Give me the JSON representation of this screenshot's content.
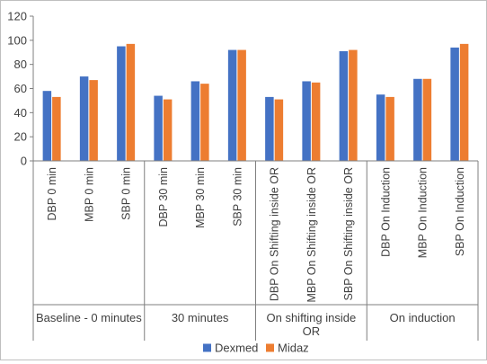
{
  "chart_data": {
    "type": "bar",
    "ylim": [
      0,
      120
    ],
    "yticks": [
      "0",
      "20",
      "40",
      "60",
      "80",
      "100",
      "120"
    ],
    "grid": false,
    "legend_position": "bottom",
    "categories": [
      "DBP 0 min",
      "MBP 0 min",
      "SBP 0 min",
      "DBP 30 min",
      "MBP 30 min",
      "SBP 30 min",
      "DBP On Shifting inside OR",
      "MBP On Shifting inside OR",
      "SBP On Shifting inside OR",
      "DBP On Induction",
      "MBP On Induction",
      "SBP On Induction"
    ],
    "groups": [
      {
        "label": "Baseline - 0 minutes",
        "lines": [
          "Baseline - 0 minutes"
        ],
        "size": 3
      },
      {
        "label": "30 minutes",
        "lines": [
          "30 minutes"
        ],
        "size": 3
      },
      {
        "label": "On shifting inside OR",
        "lines": [
          "On shifting inside",
          "OR"
        ],
        "size": 3
      },
      {
        "label": "On induction",
        "lines": [
          "On induction"
        ],
        "size": 3
      }
    ],
    "series": [
      {
        "name": "Dexmed",
        "color": "#4472c4",
        "values": [
          58,
          70,
          95,
          54,
          66,
          92,
          53,
          66,
          91,
          55,
          68,
          94
        ]
      },
      {
        "name": "Midaz",
        "color": "#ed7d31",
        "values": [
          53,
          67,
          97,
          51,
          64,
          92,
          51,
          65,
          92,
          53,
          68,
          97
        ]
      }
    ],
    "axis_color": "#7f7f7f",
    "text_color": "#404040"
  }
}
